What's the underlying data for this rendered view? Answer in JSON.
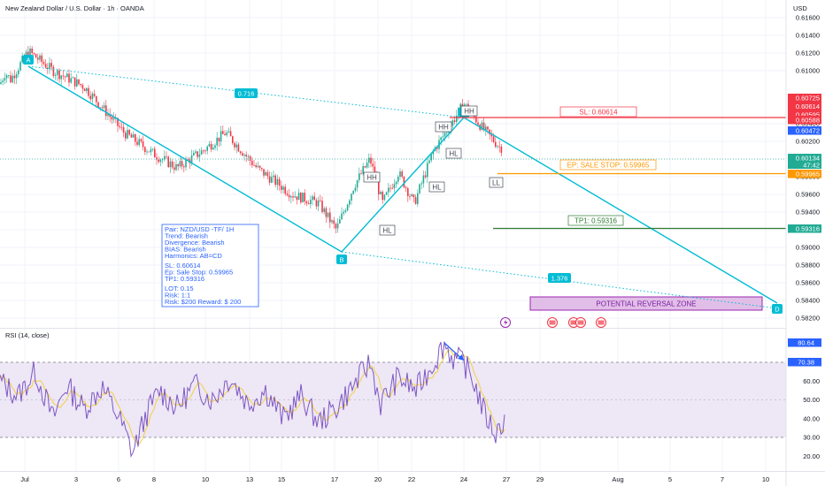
{
  "header": {
    "symbol_title": "New Zealand Dollar / U.S. Dollar · 1h · OANDA",
    "currency": "USD"
  },
  "price_axis": {
    "ticks": [
      "0.61600",
      "0.61400",
      "0.61200",
      "0.61000",
      "0.60400",
      "0.60200",
      "0.59800",
      "0.59600",
      "0.59400",
      "0.59200",
      "0.59000",
      "0.58800",
      "0.58600",
      "0.58400",
      "0.58200"
    ],
    "ylim": [
      0.581,
      0.618
    ]
  },
  "price_badges": {
    "b1": {
      "text": "0.60725",
      "color": "#f23645"
    },
    "b2": {
      "text": "0.60614",
      "color": "#f23645"
    },
    "b3": {
      "text": "0.60595",
      "color": "#f23645"
    },
    "b4": {
      "text": "0.60588",
      "color": "#f23645"
    },
    "b5": {
      "text": "0.60472",
      "color": "#2962ff"
    },
    "current_price": "0.60134",
    "countdown": "47:42",
    "entry": {
      "text": "0.59965",
      "color": "#ff9800"
    },
    "tp": {
      "text": "0.59316",
      "color": "#22ab94"
    }
  },
  "time_axis": {
    "labels": [
      "Jul",
      "3",
      "6",
      "8",
      "10",
      "13",
      "15",
      "17",
      "20",
      "22",
      "24",
      "27",
      "29",
      "Aug",
      "5",
      "7",
      "10"
    ]
  },
  "pattern": {
    "labels": {
      "A": "A",
      "B": "B",
      "C": "C",
      "D": "D"
    },
    "ratios": {
      "ab_bd": "0.716",
      "bc_d": "1.376"
    },
    "structure": {
      "hh1": "HH",
      "hl1": "HL",
      "hl2": "HL",
      "hh2": "HH",
      "hl3": "HL",
      "hh3": "HH",
      "ll": "LL"
    }
  },
  "levels": {
    "sl_label": "SL: 0.60614",
    "ep_label": "EP: SALE STOP: 0.59965",
    "tp_label": "TP1: 0.59316",
    "zone_label": "POTENTIAL REVERSAL ZONE"
  },
  "info_box": {
    "line1": "Pair: NZD/USD -TF/ 1H",
    "line2": "Trend: Bearish",
    "line3": "Divergence: Bearish",
    "line4": "BIAS: Bearish",
    "line5": "Harmonics: AB=CD",
    "line6": "SL: 0.60614",
    "line7": "Ep: Sale Stop: 0.59965",
    "line8": "TP1: 0.59316",
    "line9": "LOT:  0.15",
    "line10": "Risk:  1:1",
    "line11": "Risk: $200 Reward: $ 200"
  },
  "rsi": {
    "title": "RSI (14, close)",
    "ticks": [
      "60.00",
      "50.00",
      "40.00",
      "30.00",
      "20.00"
    ],
    "badge_rsi": "80.64",
    "badge_ma": "70.38",
    "ylim": [
      13,
      84
    ],
    "upper_band": 70,
    "lower_band": 30
  },
  "colors": {
    "bull": "#22ab94",
    "bear": "#f23645",
    "pattern": "#00bcd4",
    "rsi_line": "#7e57c2",
    "rsi_ma": "#f4d03f",
    "rsi_band": "#ede7f6",
    "zone_fill": "#e1bee7",
    "zone_border": "#9c27b0"
  },
  "chart_data": [
    {
      "type": "candlestick",
      "title": "New Zealand Dollar / U.S. Dollar · 1h · OANDA",
      "ylabel": "USD",
      "ylim": [
        0.581,
        0.618
      ],
      "pattern_points": [
        {
          "label": "A",
          "price": 0.6122
        },
        {
          "label": "B",
          "price": 0.5905
        },
        {
          "label": "C",
          "price": 0.6063
        },
        {
          "label": "D",
          "price": 0.5845
        }
      ],
      "levels": [
        {
          "name": "SL",
          "value": 0.60614
        },
        {
          "name": "EP: SALE STOP",
          "value": 0.59965
        },
        {
          "name": "TP1",
          "value": 0.59316
        }
      ],
      "current_price": 0.60134,
      "grid": true
    },
    {
      "type": "line",
      "title": "RSI (14, close)",
      "ylim": [
        13,
        84
      ],
      "series": [
        {
          "name": "RSI (14, close)",
          "last": 80.64
        }
      ],
      "bands": [
        70,
        30
      ]
    }
  ]
}
